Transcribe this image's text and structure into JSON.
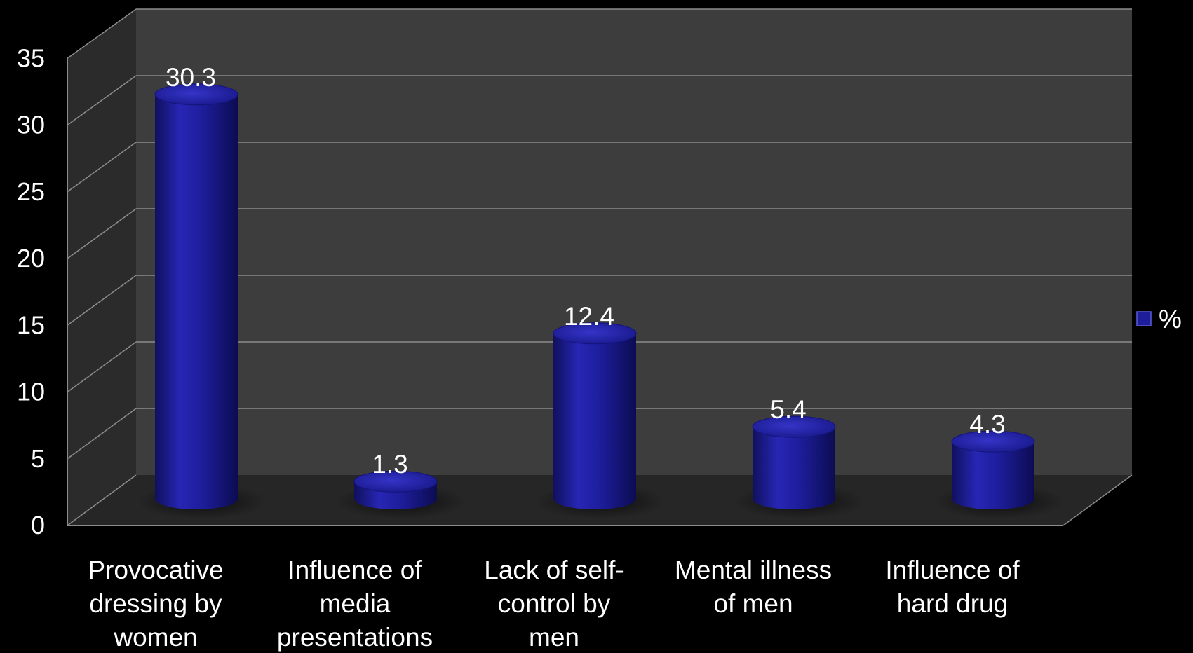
{
  "chart_data": {
    "type": "bar",
    "style": "3d-cylinder",
    "categories": [
      "Provocative dressing by women",
      "Influence of media presentations",
      "Lack of self-control by men",
      "Mental illness of men",
      "Influence of hard drug"
    ],
    "category_lines": [
      [
        "Provocative",
        "dressing by",
        "women"
      ],
      [
        "Influence of",
        "media",
        "presentations"
      ],
      [
        "Lack of self-",
        "control by",
        "men"
      ],
      [
        "Mental illness",
        "of men"
      ],
      [
        "Influence of",
        "hard drug"
      ]
    ],
    "series": [
      {
        "name": "%",
        "values": [
          30.3,
          1.3,
          12.4,
          5.4,
          4.3
        ],
        "color": "#1e1e9a"
      }
    ],
    "data_labels": [
      "30.3",
      "1.3",
      "12.4",
      "5.4",
      "4.3"
    ],
    "ylim": [
      0,
      35
    ],
    "yticks": [
      0,
      5,
      10,
      15,
      20,
      25,
      30,
      35
    ],
    "title": "",
    "xlabel": "",
    "ylabel": "",
    "grid": true,
    "legend_position": "right",
    "colors": {
      "background": "#000000",
      "back_wall": "#3d3d3d",
      "side_wall": "#2b2b2b",
      "floor": "#262626",
      "gridline": "#8c8c8c",
      "text": "#ffffff"
    }
  }
}
